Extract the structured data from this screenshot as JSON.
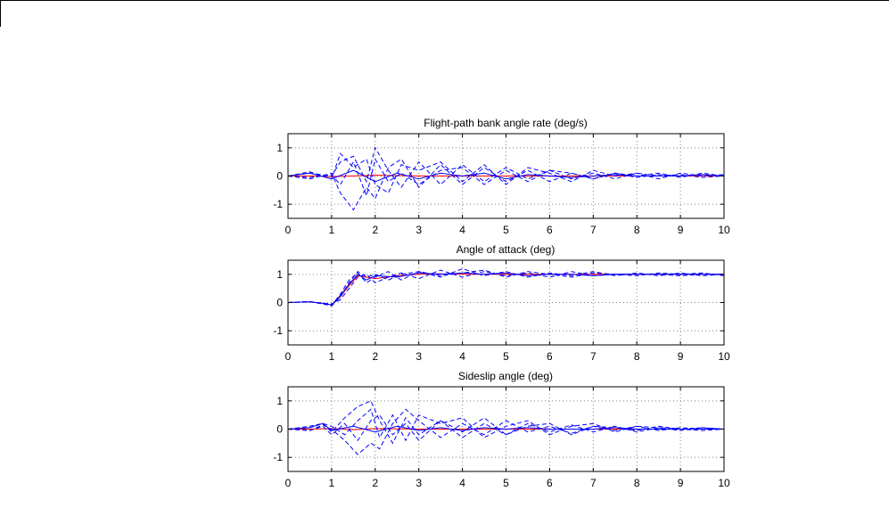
{
  "figure": {
    "colors": {
      "runs": "#0000ff",
      "nominal": "#ff0000",
      "grid": "#808080",
      "axis": "#000000"
    }
  },
  "chart_data": [
    {
      "type": "line",
      "title": "Flight-path bank angle rate (deg/s)",
      "xlim": [
        0,
        10
      ],
      "ylim": [
        -1.5,
        1.5
      ],
      "xticks": [
        0,
        1,
        2,
        3,
        4,
        5,
        6,
        7,
        8,
        9,
        10
      ],
      "yticks": [
        -1,
        0,
        1
      ],
      "grid": true,
      "series": [
        {
          "style": "solid-red",
          "x": [
            0,
            0.5,
            1,
            1.5,
            2,
            3,
            4,
            5,
            6,
            7,
            8,
            9,
            10
          ],
          "y": [
            0,
            0,
            -0.02,
            0,
            0.03,
            0,
            0,
            0,
            0,
            0,
            0,
            0,
            0
          ]
        },
        {
          "style": "dashed-blue",
          "x": [
            0,
            0.5,
            1,
            1.2,
            1.5,
            1.8,
            2,
            2.3,
            2.6,
            3,
            3.5,
            4,
            4.5,
            5,
            5.5,
            6,
            6.5,
            7,
            7.5,
            8,
            8.5,
            9,
            9.5,
            10
          ],
          "y": [
            0,
            0.1,
            0,
            0.5,
            0.7,
            -0.2,
            1.0,
            0.2,
            -0.4,
            0.5,
            -0.3,
            0.4,
            -0.2,
            0.3,
            -0.1,
            0.2,
            -0.1,
            0.1,
            -0.1,
            0.1,
            0,
            0.05,
            -0.05,
            0
          ]
        },
        {
          "style": "dashed-blue",
          "x": [
            0,
            0.5,
            1,
            1.2,
            1.5,
            1.8,
            2,
            2.3,
            2.6,
            3,
            3.5,
            4,
            4.5,
            5,
            5.5,
            6,
            6.5,
            7,
            7.5,
            8,
            8.5,
            9,
            9.5,
            10
          ],
          "y": [
            0,
            -0.1,
            0.1,
            -0.6,
            -1.2,
            -0.4,
            -0.8,
            0.3,
            0.6,
            -0.4,
            0.4,
            -0.3,
            0.3,
            -0.2,
            0.2,
            -0.2,
            0.1,
            -0.1,
            0.1,
            -0.05,
            0.05,
            0,
            0.05,
            0
          ]
        },
        {
          "style": "dashed-blue",
          "x": [
            0,
            0.5,
            1,
            1.2,
            1.5,
            1.8,
            2,
            2.3,
            2.6,
            3,
            3.5,
            4,
            4.5,
            5,
            5.5,
            6,
            6.5,
            7,
            7.5,
            8,
            8.5,
            9,
            9.5,
            10
          ],
          "y": [
            0,
            0.15,
            -0.1,
            0.8,
            0.3,
            0.6,
            -0.3,
            -0.6,
            0.4,
            0.2,
            0.5,
            -0.2,
            0.4,
            -0.3,
            0.3,
            0.1,
            -0.2,
            0.2,
            0,
            0.1,
            -0.1,
            0.1,
            0,
            0.05
          ]
        },
        {
          "style": "dashed-blue",
          "x": [
            0,
            0.5,
            1,
            1.2,
            1.5,
            1.8,
            2,
            2.3,
            2.6,
            3,
            3.5,
            4,
            4.5,
            5,
            5.5,
            6,
            6.5,
            7,
            7.5,
            8,
            8.5,
            9,
            9.5,
            10
          ],
          "y": [
            0,
            -0.05,
            0.05,
            -0.3,
            0.5,
            -0.7,
            0.6,
            -0.2,
            0.1,
            -0.3,
            0.2,
            0.3,
            -0.3,
            0.2,
            -0.2,
            0.2,
            0.1,
            -0.1,
            0.1,
            0,
            0.1,
            -0.05,
            0.1,
            0
          ]
        },
        {
          "style": "solid-blue",
          "x": [
            0,
            0.5,
            1,
            1.5,
            2,
            2.5,
            3,
            3.5,
            4,
            4.5,
            5,
            5.5,
            6,
            6.5,
            7,
            7.5,
            8,
            8.5,
            9,
            9.5,
            10
          ],
          "y": [
            0,
            0.1,
            -0.1,
            0.2,
            -0.2,
            0.1,
            -0.1,
            0.1,
            0,
            0.1,
            -0.1,
            0.05,
            0,
            -0.05,
            0,
            0.05,
            0,
            0,
            0,
            0.05,
            0
          ]
        }
      ]
    },
    {
      "type": "line",
      "title": "Angle of attack (deg)",
      "xlim": [
        0,
        10
      ],
      "ylim": [
        -1.5,
        1.5
      ],
      "xticks": [
        0,
        1,
        2,
        3,
        4,
        5,
        6,
        7,
        8,
        9,
        10
      ],
      "yticks": [
        -1,
        0,
        1
      ],
      "grid": true,
      "series": [
        {
          "style": "solid-red",
          "x": [
            0,
            0.5,
            0.8,
            1,
            1.2,
            1.4,
            1.6,
            1.8,
            2,
            2.5,
            3,
            3.5,
            4,
            5,
            6,
            7,
            8,
            9,
            10
          ],
          "y": [
            0,
            0.03,
            -0.03,
            -0.08,
            0.2,
            0.6,
            0.95,
            0.9,
            0.85,
            0.95,
            1.0,
            1.02,
            1.0,
            1.0,
            1.0,
            1.0,
            1.0,
            1.0,
            1.0
          ]
        },
        {
          "style": "dashed-blue",
          "x": [
            0,
            0.5,
            0.8,
            1,
            1.2,
            1.4,
            1.6,
            1.8,
            2,
            2.3,
            2.6,
            3,
            3.5,
            4,
            4.5,
            5,
            5.5,
            6,
            6.5,
            7,
            7.5,
            8,
            8.5,
            9,
            9.5,
            10
          ],
          "y": [
            0,
            0.03,
            -0.05,
            -0.1,
            0.3,
            0.8,
            1.05,
            0.7,
            0.9,
            1.1,
            0.8,
            1.1,
            0.9,
            1.2,
            0.95,
            1.1,
            0.9,
            1.05,
            0.95,
            1.1,
            0.95,
            1.05,
            0.95,
            1.05,
            0.95,
            1.0
          ]
        },
        {
          "style": "dashed-blue",
          "x": [
            0,
            0.5,
            0.8,
            1,
            1.2,
            1.4,
            1.6,
            1.8,
            2,
            2.3,
            2.6,
            3,
            3.5,
            4,
            4.5,
            5,
            5.5,
            6,
            6.5,
            7,
            7.5,
            8,
            8.5,
            9,
            9.5,
            10
          ],
          "y": [
            0,
            0.02,
            -0.02,
            -0.05,
            0.1,
            0.5,
            0.9,
            1.0,
            0.7,
            0.9,
            1.05,
            0.85,
            1.15,
            0.9,
            1.1,
            0.95,
            1.05,
            0.9,
            1.1,
            0.95,
            1.0,
            0.95,
            1.05,
            1.0,
            1.05,
            0.95
          ]
        },
        {
          "style": "dashed-blue",
          "x": [
            0,
            0.5,
            0.8,
            1,
            1.2,
            1.4,
            1.6,
            1.8,
            2,
            2.3,
            2.6,
            3,
            3.5,
            4,
            4.5,
            5,
            5.5,
            6,
            6.5,
            7,
            7.5,
            8,
            8.5,
            9,
            9.5,
            10
          ],
          "y": [
            0,
            0.04,
            -0.04,
            -0.12,
            0.2,
            0.7,
            1.1,
            0.9,
            1.0,
            0.8,
            1.0,
            1.1,
            0.95,
            1.05,
            1.15,
            0.9,
            1.1,
            1.0,
            0.9,
            1.05,
            1.0,
            1.0,
            1.0,
            0.95,
            1.0,
            1.0
          ]
        },
        {
          "style": "solid-blue",
          "x": [
            0,
            0.5,
            0.8,
            1,
            1.2,
            1.4,
            1.6,
            1.8,
            2,
            2.5,
            3,
            3.5,
            4,
            4.5,
            5,
            5.5,
            6,
            6.5,
            7,
            7.5,
            8,
            8.5,
            9,
            9.5,
            10
          ],
          "y": [
            0,
            0.03,
            -0.03,
            -0.08,
            0.25,
            0.65,
            1.0,
            0.8,
            0.95,
            0.9,
            1.05,
            1.0,
            1.05,
            1.0,
            1.05,
            0.95,
            1.0,
            1.0,
            0.95,
            1.0,
            1.0,
            1.0,
            1.0,
            1.0,
            1.0
          ]
        }
      ]
    },
    {
      "type": "line",
      "title": "Sideslip angle (deg)",
      "xlim": [
        0,
        10
      ],
      "ylim": [
        -1.5,
        1.5
      ],
      "xticks": [
        0,
        1,
        2,
        3,
        4,
        5,
        6,
        7,
        8,
        9,
        10
      ],
      "yticks": [
        -1,
        0,
        1
      ],
      "grid": true,
      "series": [
        {
          "style": "solid-red",
          "x": [
            0,
            0.5,
            1,
            1.5,
            2,
            3,
            4,
            5,
            6,
            7,
            8,
            9,
            10
          ],
          "y": [
            0,
            0,
            0.02,
            -0.02,
            0.02,
            0,
            0,
            0,
            0,
            0,
            0,
            0,
            0
          ]
        },
        {
          "style": "dashed-blue",
          "x": [
            0,
            0.5,
            0.8,
            1,
            1.3,
            1.6,
            1.9,
            2.1,
            2.4,
            2.7,
            3,
            3.5,
            4,
            4.5,
            5,
            5.5,
            6,
            6.5,
            7,
            7.5,
            8,
            8.5,
            9,
            9.5,
            10
          ],
          "y": [
            0,
            0.05,
            0.2,
            -0.1,
            0.4,
            0.8,
            1.0,
            0.3,
            -0.5,
            0.4,
            -0.2,
            0.3,
            -0.3,
            0.2,
            -0.2,
            0.2,
            -0.1,
            0.15,
            -0.1,
            0.1,
            -0.1,
            0.05,
            0,
            0.05,
            0
          ]
        },
        {
          "style": "dashed-blue",
          "x": [
            0,
            0.5,
            0.8,
            1,
            1.3,
            1.6,
            1.9,
            2.1,
            2.4,
            2.7,
            3,
            3.5,
            4,
            4.5,
            5,
            5.5,
            6,
            6.5,
            7,
            7.5,
            8,
            8.5,
            9,
            9.5,
            10
          ],
          "y": [
            0,
            -0.05,
            0.15,
            0,
            -0.4,
            -0.9,
            -0.5,
            -0.7,
            0.2,
            0.7,
            0.3,
            -0.3,
            0.2,
            -0.2,
            0.3,
            -0.1,
            0.1,
            -0.15,
            0.1,
            -0.05,
            0.1,
            -0.05,
            0.05,
            0,
            0
          ]
        },
        {
          "style": "dashed-blue",
          "x": [
            0,
            0.5,
            0.8,
            1,
            1.3,
            1.6,
            1.9,
            2.1,
            2.4,
            2.7,
            3,
            3.5,
            4,
            4.5,
            5,
            5.5,
            6,
            6.5,
            7,
            7.5,
            8,
            8.5,
            9,
            9.5,
            10
          ],
          "y": [
            0,
            0.1,
            0.2,
            0.1,
            -0.2,
            0.3,
            0.7,
            -0.3,
            0.5,
            -0.4,
            0.5,
            0.2,
            0.4,
            -0.3,
            0.1,
            0.3,
            -0.2,
            0.1,
            0.2,
            -0.1,
            0.1,
            0.05,
            -0.05,
            0.05,
            0
          ]
        },
        {
          "style": "dashed-blue",
          "x": [
            0,
            0.5,
            0.8,
            1,
            1.3,
            1.6,
            1.9,
            2.1,
            2.4,
            2.7,
            3,
            3.5,
            4,
            4.5,
            5,
            5.5,
            6,
            6.5,
            7,
            7.5,
            8,
            8.5,
            9,
            9.5,
            10
          ],
          "y": [
            0,
            -0.05,
            0.1,
            -0.2,
            0.2,
            -0.4,
            0.3,
            0.5,
            -0.2,
            0.2,
            -0.4,
            0.3,
            -0.1,
            0.4,
            -0.2,
            0.1,
            0.2,
            -0.2,
            0.1,
            0.05,
            -0.05,
            0.1,
            0,
            -0.05,
            0
          ]
        },
        {
          "style": "solid-blue",
          "x": [
            0,
            0.5,
            0.8,
            1,
            1.5,
            2,
            2.5,
            3,
            3.5,
            4,
            4.5,
            5,
            5.5,
            6,
            6.5,
            7,
            7.5,
            8,
            8.5,
            9,
            9.5,
            10
          ],
          "y": [
            0,
            0.05,
            0.2,
            -0.05,
            0.1,
            -0.1,
            0.1,
            -0.05,
            0.05,
            -0.05,
            0.05,
            0,
            0.05,
            0,
            0,
            0,
            0.05,
            0,
            0,
            0,
            0,
            0
          ]
        }
      ]
    }
  ]
}
